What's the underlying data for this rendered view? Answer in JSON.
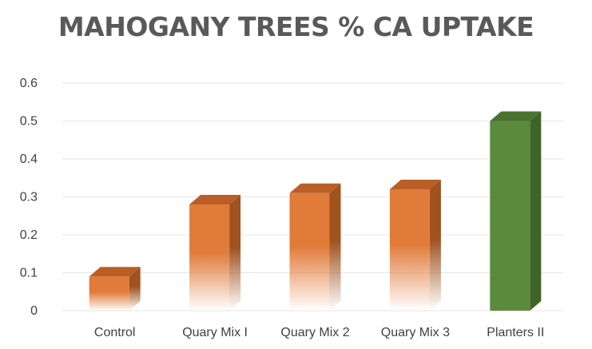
{
  "chart_data": {
    "type": "bar",
    "title": "MAHOGANY TREES % CA UPTAKE",
    "categories": [
      "Control",
      "Quary Mix I",
      "Quary Mix 2",
      "Quary Mix 3",
      "Planters II"
    ],
    "values": [
      0.09,
      0.28,
      0.31,
      0.32,
      0.5
    ],
    "ylim": [
      0,
      0.6
    ],
    "yticks": [
      "0",
      "0.1",
      "0.2",
      "0.3",
      "0.4",
      "0.5",
      "0.6"
    ],
    "grid": true,
    "legend": "none",
    "bar_colors": [
      "#e07b39",
      "#e07b39",
      "#e07b39",
      "#e07b39",
      "#5b8a3c"
    ],
    "bar_side_colors": [
      "#a0521f",
      "#a0521f",
      "#a0521f",
      "#a0521f",
      "#3f6526"
    ],
    "bar_top_colors": [
      "#b95f25",
      "#b95f25",
      "#b95f25",
      "#b95f25",
      "#4a7330"
    ],
    "gradient_fade": [
      true,
      true,
      true,
      true,
      false
    ]
  }
}
